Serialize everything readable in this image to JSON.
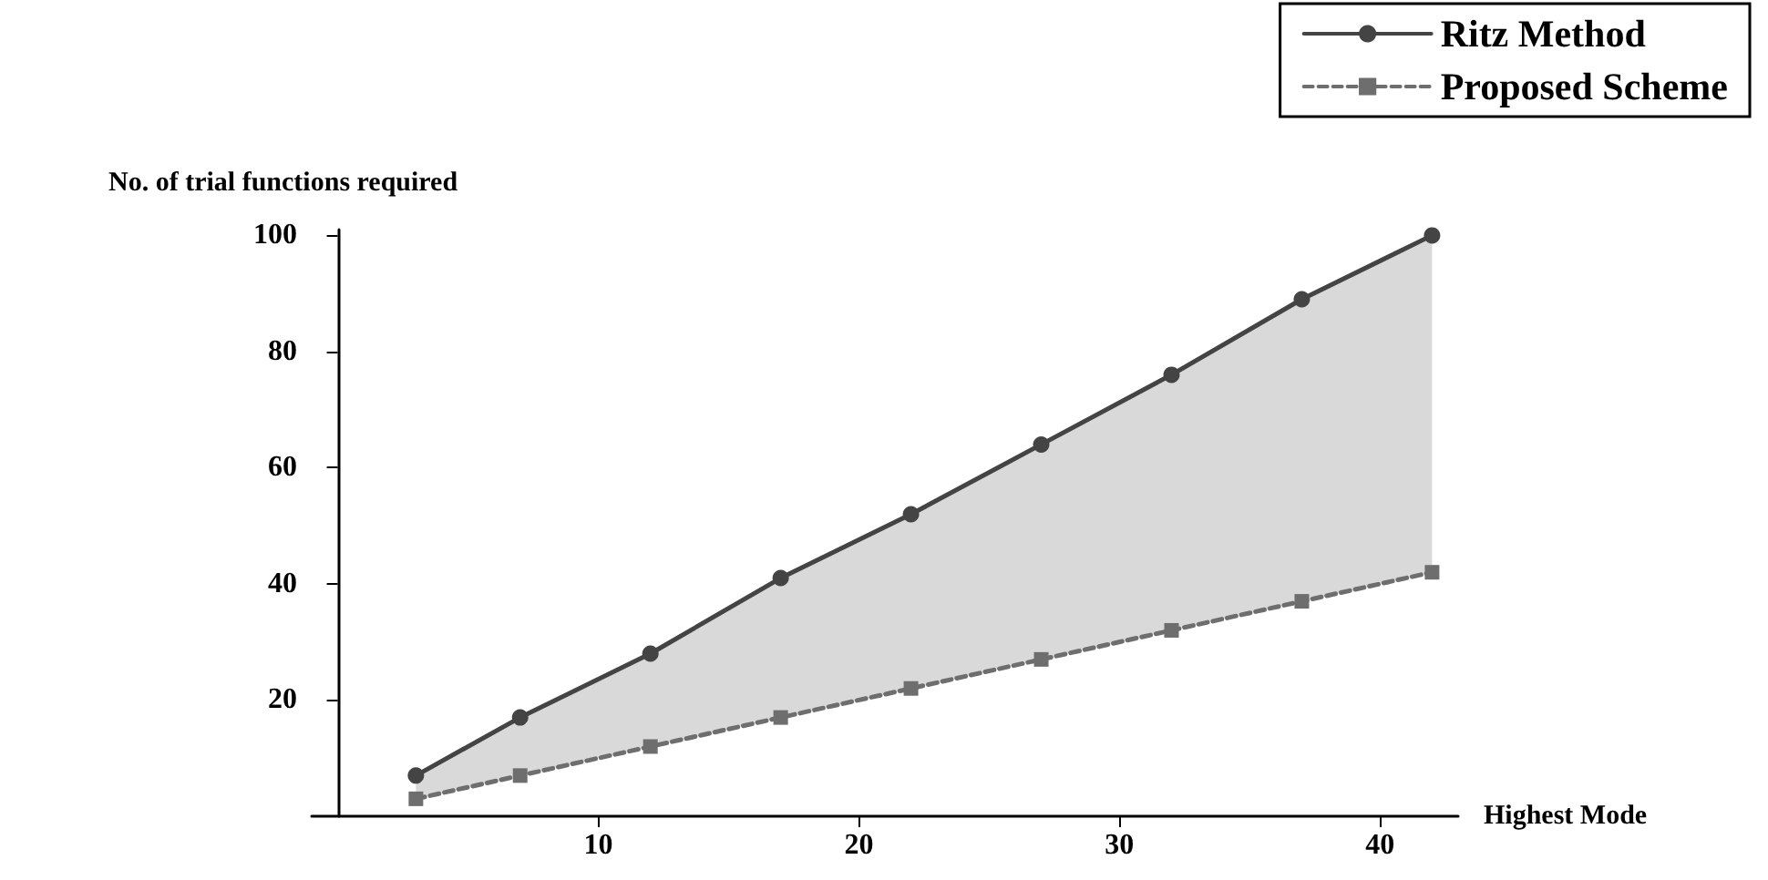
{
  "chart_data": {
    "type": "line",
    "xlabel": "Highest Mode",
    "ylabel": "No. of trial functions required",
    "x": [
      3,
      7,
      12,
      17,
      22,
      27,
      32,
      37,
      42
    ],
    "series": [
      {
        "name": "Ritz Method",
        "color": "#444444",
        "marker": "circle",
        "line_style": "solid",
        "values": [
          7,
          17,
          28,
          41,
          52,
          64,
          76,
          89,
          100
        ],
        "lower": [
          3,
          7,
          12,
          17,
          22,
          27,
          32,
          37,
          42
        ],
        "upper": [
          7,
          17,
          28,
          41,
          52,
          64,
          76,
          89,
          100
        ]
      },
      {
        "name": "Proposed Scheme",
        "color": "#6e6e6e",
        "marker": "square",
        "line_style": "dashed",
        "values": [
          3,
          7,
          12,
          17,
          22,
          27,
          32,
          37,
          42
        ]
      }
    ],
    "xlim": [
      -1,
      43
    ],
    "xticks": [
      10,
      20,
      30,
      40
    ],
    "ylim": [
      0,
      101
    ],
    "yticks": [
      20,
      40,
      60,
      80,
      100
    ],
    "legend": "top right",
    "grid": false
  }
}
